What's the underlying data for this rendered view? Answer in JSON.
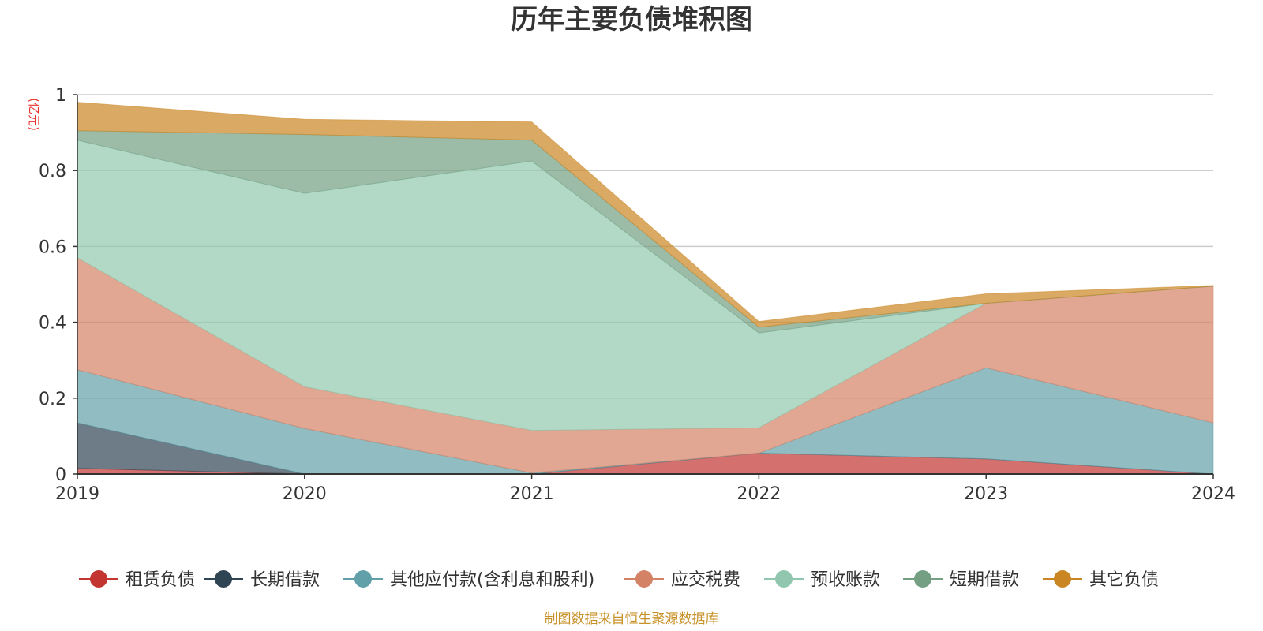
{
  "chart_data": {
    "type": "area",
    "stacked": true,
    "title": "历年主要负债堆积图",
    "unit_label": "(亿元)",
    "x": [
      "2019",
      "2020",
      "2021",
      "2022",
      "2023",
      "2024"
    ],
    "ylim": [
      0,
      1
    ],
    "yticks": [
      "0",
      "0.2",
      "0.4",
      "0.6",
      "0.8",
      "1"
    ],
    "grid": true,
    "legend_position": "bottom",
    "series": [
      {
        "name": "租赁负债",
        "color": "#c23531",
        "values": [
          0.015,
          0.0,
          0.0,
          0.055,
          0.04,
          0.0
        ]
      },
      {
        "name": "长期借款",
        "color": "#2f4554",
        "values": [
          0.12,
          0.0,
          0.0,
          0.0,
          0.0,
          0.0
        ]
      },
      {
        "name": "其他应付款(含利息和股利)",
        "color": "#61a0a8",
        "values": [
          0.14,
          0.12,
          0.003,
          0.0,
          0.24,
          0.135
        ]
      },
      {
        "name": "应交税费",
        "color": "#d48265",
        "values": [
          0.295,
          0.11,
          0.112,
          0.067,
          0.17,
          0.36
        ]
      },
      {
        "name": "预收账款",
        "color": "#91c7ae",
        "values": [
          0.31,
          0.51,
          0.71,
          0.25,
          0.0,
          0.0
        ]
      },
      {
        "name": "短期借款",
        "color": "#749f83",
        "values": [
          0.025,
          0.155,
          0.055,
          0.015,
          0.0,
          0.0
        ]
      },
      {
        "name": "其它负债",
        "color": "#ca8622",
        "values": [
          0.075,
          0.04,
          0.048,
          0.015,
          0.025,
          0.002
        ]
      }
    ]
  },
  "footer": {
    "source": "制图数据来自恒生聚源数据库"
  }
}
